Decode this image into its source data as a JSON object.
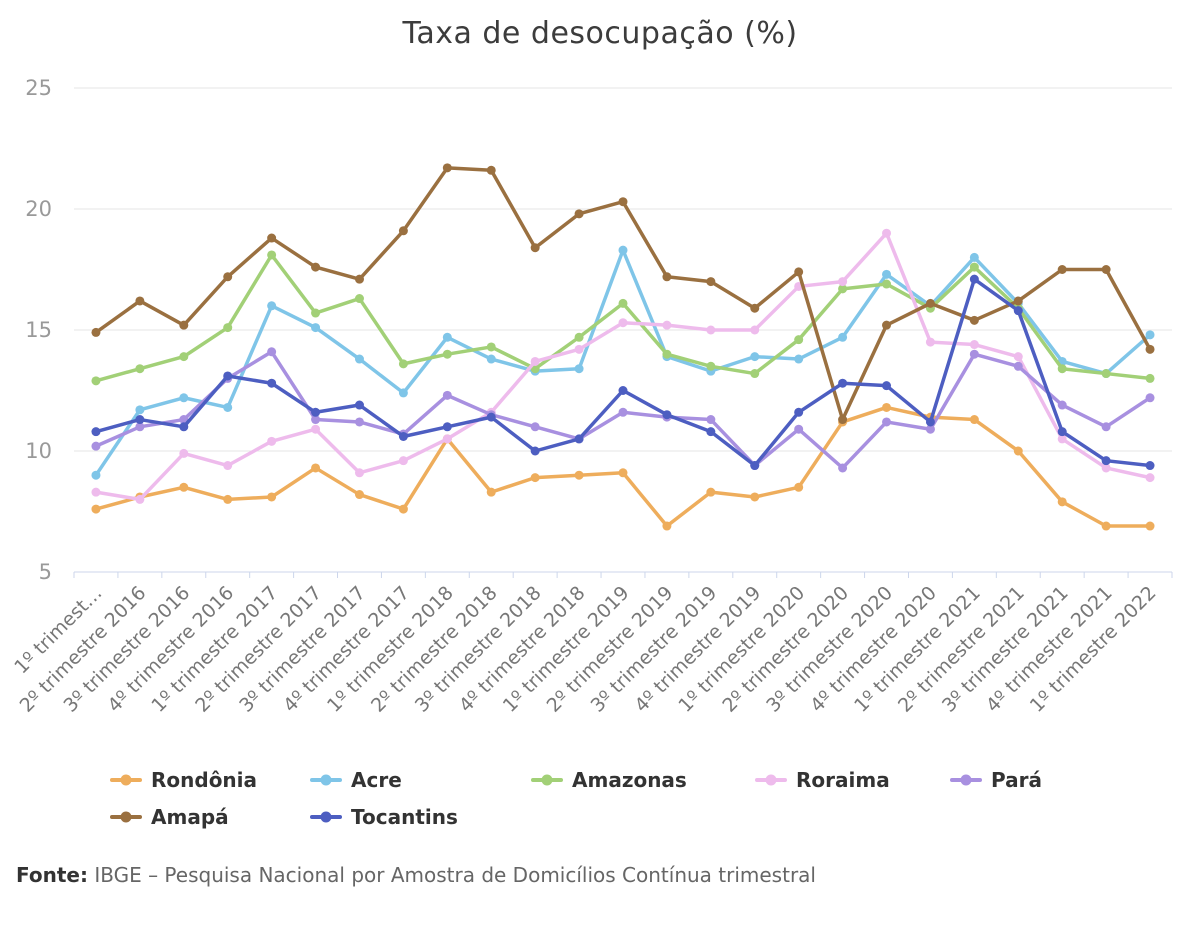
{
  "title": "Taxa de desocupação (%)",
  "source_note": {
    "label": "Fonte:",
    "text": "IBGE – Pesquisa Nacional por Amostra de Domicílios Contínua trimestral"
  },
  "axis_colors": {
    "grid": "#e6e6e6",
    "axis_line": "#ccd6eb",
    "y_label": "#999999",
    "x_label": "#777777"
  },
  "chart_data": {
    "type": "line",
    "title": "Taxa de desocupação (%)",
    "xlabel": "",
    "ylabel": "",
    "ylim": [
      5,
      25
    ],
    "yticks": [
      25,
      20,
      15,
      10,
      5
    ],
    "grid": true,
    "legend_position": "bottom",
    "categories": [
      "1º trimest…",
      "2º trimestre 2016",
      "3º trimestre 2016",
      "4º trimestre 2016",
      "1º trimestre 2017",
      "2º trimestre 2017",
      "3º trimestre 2017",
      "4º trimestre 2017",
      "1º trimestre 2018",
      "2º trimestre 2018",
      "3º trimestre 2018",
      "4º trimestre 2018",
      "1º trimestre 2019",
      "2º trimestre 2019",
      "3º trimestre 2019",
      "4º trimestre 2019",
      "1º trimestre 2020",
      "2º trimestre 2020",
      "3º trimestre 2020",
      "4º trimestre 2020",
      "1º trimestre 2021",
      "2º trimestre 2021",
      "3º trimestre 2021",
      "4º trimestre 2021",
      "1º trimestre 2022"
    ],
    "series": [
      {
        "name": "Rondônia",
        "color": "#eead5c",
        "values": [
          7.6,
          8.1,
          8.5,
          8.0,
          8.1,
          9.3,
          8.2,
          7.6,
          10.5,
          8.3,
          8.9,
          9.0,
          9.1,
          6.9,
          8.3,
          8.1,
          8.5,
          11.2,
          11.8,
          11.4,
          11.3,
          10.0,
          7.9,
          6.9,
          6.9
        ]
      },
      {
        "name": "Acre",
        "color": "#7fc5e8",
        "values": [
          9.0,
          11.7,
          12.2,
          11.8,
          16.0,
          15.1,
          13.8,
          12.4,
          14.7,
          13.8,
          13.3,
          13.4,
          18.3,
          13.9,
          13.3,
          13.9,
          13.8,
          14.7,
          17.3,
          16.0,
          18.0,
          16.1,
          13.7,
          13.2,
          14.8
        ]
      },
      {
        "name": "Amazonas",
        "color": "#a2d077",
        "values": [
          12.9,
          13.4,
          13.9,
          15.1,
          18.1,
          15.7,
          16.3,
          13.6,
          14.0,
          14.3,
          13.4,
          14.7,
          16.1,
          14.0,
          13.5,
          13.2,
          14.6,
          16.7,
          16.9,
          15.9,
          17.6,
          15.9,
          13.4,
          13.2,
          13.0
        ]
      },
      {
        "name": "Roraima",
        "color": "#eebbec",
        "values": [
          8.3,
          8.0,
          9.9,
          9.4,
          10.4,
          10.9,
          9.1,
          9.6,
          10.5,
          11.6,
          13.7,
          14.2,
          15.3,
          15.2,
          15.0,
          15.0,
          16.8,
          17.0,
          19.0,
          14.5,
          14.4,
          13.9,
          10.5,
          9.3,
          8.9
        ]
      },
      {
        "name": "Pará",
        "color": "#a890e0",
        "values": [
          10.2,
          11.0,
          11.3,
          13.0,
          14.1,
          11.3,
          11.2,
          10.7,
          12.3,
          11.5,
          11.0,
          10.5,
          11.6,
          11.4,
          11.3,
          9.4,
          10.9,
          9.3,
          11.2,
          10.9,
          14.0,
          13.5,
          11.9,
          11.0,
          12.2
        ]
      },
      {
        "name": "Amapá",
        "color": "#9a7040",
        "values": [
          14.9,
          16.2,
          15.2,
          17.2,
          18.8,
          17.6,
          17.1,
          19.1,
          21.7,
          21.6,
          18.4,
          19.8,
          20.3,
          17.2,
          17.0,
          15.9,
          17.4,
          11.3,
          15.2,
          16.1,
          15.4,
          16.2,
          17.5,
          17.5,
          14.2
        ]
      },
      {
        "name": "Tocantins",
        "color": "#4d5ec1",
        "values": [
          10.8,
          11.3,
          11.0,
          13.1,
          12.8,
          11.6,
          11.9,
          10.6,
          11.0,
          11.4,
          10.0,
          10.5,
          12.5,
          11.5,
          10.8,
          9.4,
          11.6,
          12.8,
          12.7,
          11.2,
          17.1,
          15.8,
          10.8,
          9.6,
          9.4
        ]
      }
    ]
  }
}
